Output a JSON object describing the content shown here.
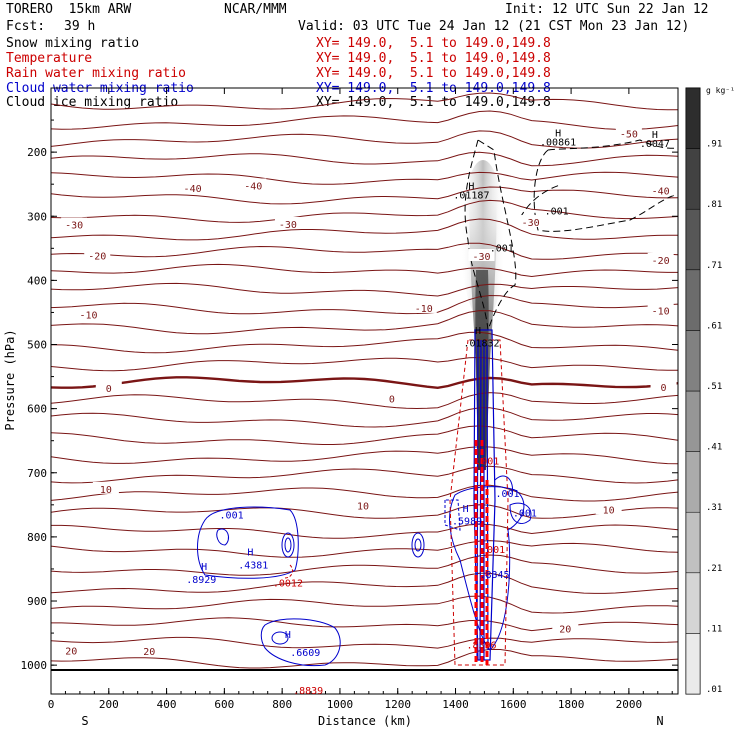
{
  "header": {
    "model": "TORERO  15km ARW",
    "org": "NCAR/MMM",
    "init": "Init: 12 UTC Sun 22 Jan 12",
    "fcst_label": "Fcst:",
    "fcst_value": "39 h",
    "valid": "Valid: 03 UTC Tue 24 Jan 12 (21 CST Mon 23 Jan 12)"
  },
  "fields": [
    {
      "name": "Snow mixing ratio",
      "xy": "XY= 149.0,  5.1 to 149.0,149.8",
      "color": "#000000"
    },
    {
      "name": "Temperature",
      "xy": "XY= 149.0,  5.1 to 149.0,149.8",
      "color": "#cc0000"
    },
    {
      "name": "Rain water mixing ratio",
      "xy": "XY= 149.0,  5.1 to 149.0,149.8",
      "color": "#cc0000"
    },
    {
      "name": "Cloud water mixing ratio",
      "xy": "XY= 149.0,  5.1 to 149.0,149.8",
      "color": "#0000cc"
    },
    {
      "name": "Cloud ice mixing ratio",
      "xy": "XY= 149.0,  5.1 to 149.0,149.8",
      "color": "#000000"
    }
  ],
  "chart_data": {
    "type": "cross-section",
    "xlabel": "Distance (km)",
    "ylabel": "Pressure (hPa)",
    "xlim": [
      0,
      2170
    ],
    "ylim": [
      1045,
      100
    ],
    "xticks": [
      0,
      200,
      400,
      600,
      800,
      1000,
      1200,
      1400,
      1600,
      1800,
      2000
    ],
    "yticks": [
      200,
      300,
      400,
      500,
      600,
      700,
      800,
      900,
      1000
    ],
    "x_end_labels": {
      "left": "S",
      "right": "N"
    },
    "colorbar": {
      "units": "g kg⁻¹",
      "labels": [
        ".01",
        ".11",
        ".21",
        ".31",
        ".41",
        ".51",
        ".61",
        ".71",
        ".81",
        ".91"
      ],
      "levels": [
        0.01,
        0.11,
        0.21,
        0.31,
        0.41,
        0.51,
        0.61,
        0.71,
        0.81,
        0.91
      ]
    },
    "temperature_labels": [
      {
        "x": 490,
        "p": 256,
        "text": "-40"
      },
      {
        "x": 700,
        "p": 252,
        "text": "-40"
      },
      {
        "x": 80,
        "p": 313,
        "text": "-30"
      },
      {
        "x": 820,
        "p": 312,
        "text": "-30"
      },
      {
        "x": 1660,
        "p": 309,
        "text": "-30"
      },
      {
        "x": 160,
        "p": 361,
        "text": "-20"
      },
      {
        "x": 2110,
        "p": 368,
        "text": "-20"
      },
      {
        "x": 130,
        "p": 453,
        "text": "-10"
      },
      {
        "x": 1290,
        "p": 443,
        "text": "-10"
      },
      {
        "x": 2110,
        "p": 447,
        "text": "-10"
      },
      {
        "x": 200,
        "p": 568,
        "text": "0"
      },
      {
        "x": 1180,
        "p": 584,
        "text": "0"
      },
      {
        "x": 2120,
        "p": 566,
        "text": "0"
      },
      {
        "x": 190,
        "p": 725,
        "text": "10"
      },
      {
        "x": 1080,
        "p": 751,
        "text": "10"
      },
      {
        "x": 1930,
        "p": 757,
        "text": "10"
      },
      {
        "x": 70,
        "p": 977,
        "text": "20"
      },
      {
        "x": 340,
        "p": 978,
        "text": "20"
      },
      {
        "x": 1780,
        "p": 943,
        "text": "20"
      },
      {
        "x": 2000,
        "p": 171,
        "text": "-50"
      },
      {
        "x": 2110,
        "p": 260,
        "text": "-40"
      },
      {
        "x": 1490,
        "p": 362,
        "text": "-30"
      }
    ],
    "snow_max": [
      {
        "x": 1455,
        "p": 272,
        "h": "H",
        "val": ".01187"
      },
      {
        "x": 1755,
        "p": 190,
        "h": "H",
        "val": ".00861"
      },
      {
        "x": 2090,
        "p": 192,
        "h": "H",
        "val": ".0047"
      }
    ],
    "ice_labels": [
      {
        "x": 1560,
        "p": 355,
        "text": ".001"
      },
      {
        "x": 1750,
        "p": 297,
        "text": ".001"
      },
      {
        "x": 1478,
        "p": 484,
        "text": "H"
      },
      {
        "x": 1490,
        "p": 503,
        "text": ".01832"
      }
    ],
    "cloud_water_labels": [
      {
        "x": 625,
        "p": 771,
        "text": ".001"
      },
      {
        "x": 530,
        "p": 852,
        "text": "H"
      },
      {
        "x": 520,
        "p": 872,
        "text": ".8929"
      },
      {
        "x": 690,
        "p": 829,
        "text": "H"
      },
      {
        "x": 700,
        "p": 849,
        "text": ".4381"
      },
      {
        "x": 1435,
        "p": 761,
        "text": "H"
      },
      {
        "x": 1440,
        "p": 781,
        "text": ".5989"
      },
      {
        "x": 1580,
        "p": 738,
        "text": ".001"
      },
      {
        "x": 1640,
        "p": 768,
        "text": ".001"
      },
      {
        "x": 820,
        "p": 958,
        "text": "H"
      },
      {
        "x": 880,
        "p": 986,
        "text": ".6609"
      },
      {
        "x": 1535,
        "p": 864,
        "text": ".8345"
      }
    ],
    "rain_labels": [
      {
        "x": 820,
        "p": 877,
        "text": ".0012"
      },
      {
        "x": 1530,
        "p": 825,
        "text": ".001"
      },
      {
        "x": 1490,
        "p": 974,
        "text": ".8396"
      },
      {
        "x": 890,
        "p": 1045,
        "text": ".8839"
      },
      {
        "x": 1510,
        "p": 687,
        "text": ".001"
      }
    ]
  }
}
